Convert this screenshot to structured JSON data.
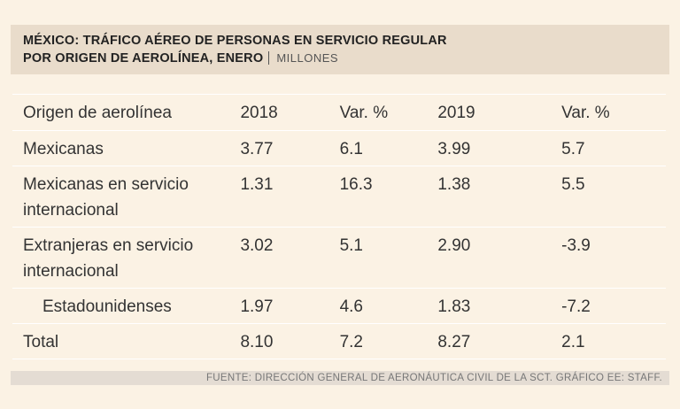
{
  "header": {
    "title_line1": "MÉXICO: TRÁFICO AÉREO DE PERSONAS EN SERVICIO REGULAR",
    "title_line2": "POR ORIGEN DE AEROLÍNEA, ENERO",
    "units": "MILLONES"
  },
  "table": {
    "columns": [
      "Origen de aerolínea",
      "2018",
      "Var. %",
      "2019",
      "Var. %"
    ],
    "rows": [
      {
        "origin": "Mexicanas",
        "v2018": "3.77",
        "var2018": "6.1",
        "v2019": "3.99",
        "var2019": "5.7"
      },
      {
        "origin": "Mexicanas en servicio internacional",
        "v2018": "1.31",
        "var2018": "16.3",
        "v2019": "1.38",
        "var2019": "5.5"
      },
      {
        "origin": "Extranjeras en servicio internacional",
        "v2018": "3.02",
        "var2018": "5.1",
        "v2019": "2.90",
        "var2019": "-3.9"
      },
      {
        "origin": "Estadounidenses",
        "v2018": "1.97",
        "var2018": "4.6",
        "v2019": "1.83",
        "var2019": "-7.2"
      },
      {
        "origin": "Total",
        "v2018": "8.10",
        "var2018": "7.2",
        "v2019": "8.27",
        "var2019": "2.1"
      }
    ]
  },
  "footer": {
    "source": "FUENTE: DIRECCIÓN GENERAL DE AERONÁUTICA CIVIL DE LA SCT. GRÁFICO EE: STAFF."
  }
}
